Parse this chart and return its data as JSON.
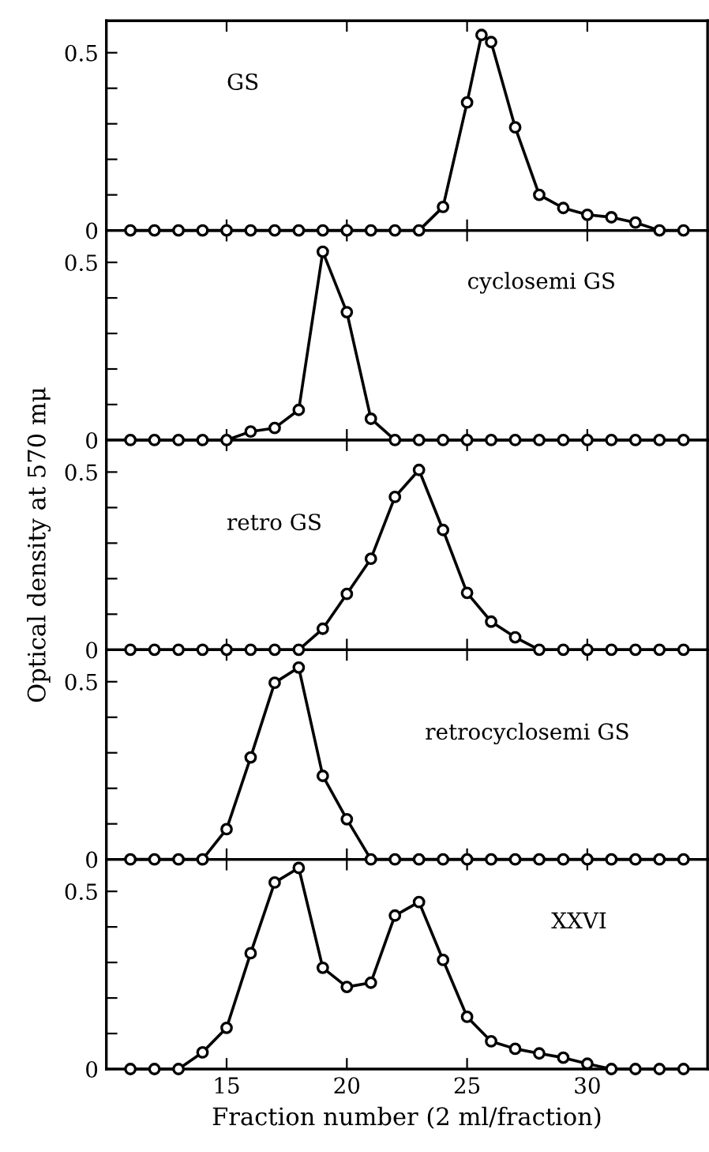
{
  "chart_data": [
    {
      "type": "line",
      "xlim": [
        10,
        35
      ],
      "ylim": [
        0,
        0.59
      ],
      "xticks": [
        {
          "value": 15,
          "label": null
        },
        {
          "value": 20,
          "label": null
        },
        {
          "value": 25,
          "label": null
        },
        {
          "value": 30,
          "label": null
        }
      ],
      "yticks": [
        0,
        {
          "value": 0.1,
          "label": null
        },
        {
          "value": 0.2,
          "label": null
        },
        {
          "value": 0.3,
          "label": null
        },
        {
          "value": 0.4,
          "label": null
        },
        0.5
      ],
      "tick_labels": "y",
      "marker": "circle",
      "grid": false,
      "legend": false,
      "series": [
        {
          "name": "GS",
          "color": "#000000",
          "x": [
            11,
            12,
            13,
            14,
            15,
            16,
            17,
            18,
            19,
            20,
            21,
            22,
            23,
            24,
            25,
            25.6,
            26,
            27,
            28,
            29,
            30,
            31,
            32,
            33,
            34
          ],
          "values": [
            0,
            0,
            0,
            0,
            0,
            0,
            0,
            0,
            0,
            0,
            0,
            0,
            0,
            0.066,
            0.36,
            0.55,
            0.53,
            0.29,
            0.1,
            0.063,
            0.044,
            0.037,
            0.022,
            0,
            0
          ]
        }
      ]
    },
    {
      "type": "line",
      "xlim": [
        10,
        35
      ],
      "ylim": [
        0,
        0.59
      ],
      "xticks": [
        {
          "value": 15,
          "label": null
        },
        {
          "value": 20,
          "label": null
        },
        {
          "value": 25,
          "label": null
        },
        {
          "value": 30,
          "label": null
        }
      ],
      "yticks": [
        0,
        {
          "value": 0.1,
          "label": null
        },
        {
          "value": 0.2,
          "label": null
        },
        {
          "value": 0.3,
          "label": null
        },
        {
          "value": 0.4,
          "label": null
        },
        0.5
      ],
      "tick_labels": "y",
      "marker": "circle",
      "grid": false,
      "legend": false,
      "series": [
        {
          "name": "cyclosemi GS",
          "color": "#000000",
          "x": [
            11,
            12,
            13,
            14,
            15,
            16,
            17,
            18,
            19,
            20,
            21,
            22,
            23,
            24,
            25,
            26,
            27,
            28,
            29,
            30,
            31,
            32,
            33,
            34
          ],
          "values": [
            0,
            0,
            0,
            0,
            0,
            0.024,
            0.034,
            0.085,
            0.53,
            0.36,
            0.06,
            0,
            0,
            0,
            0,
            0,
            0,
            0,
            0,
            0,
            0,
            0,
            0,
            0
          ]
        }
      ]
    },
    {
      "type": "line",
      "xlim": [
        10,
        35
      ],
      "ylim": [
        0,
        0.59
      ],
      "xticks": [
        {
          "value": 15,
          "label": null
        },
        {
          "value": 20,
          "label": null
        },
        {
          "value": 25,
          "label": null
        },
        {
          "value": 30,
          "label": null
        }
      ],
      "yticks": [
        0,
        {
          "value": 0.1,
          "label": null
        },
        {
          "value": 0.2,
          "label": null
        },
        {
          "value": 0.3,
          "label": null
        },
        {
          "value": 0.4,
          "label": null
        },
        0.5
      ],
      "tick_labels": "y",
      "marker": "circle",
      "grid": false,
      "legend": false,
      "ylabel": "Optical density at 570 mμ",
      "series": [
        {
          "name": "retro GS",
          "color": "#000000",
          "x": [
            11,
            12,
            13,
            14,
            15,
            16,
            17,
            18,
            19,
            20,
            21,
            22,
            23,
            24,
            25,
            26,
            27,
            28,
            29,
            30,
            31,
            32,
            33,
            34
          ],
          "values": [
            0,
            0,
            0,
            0,
            0,
            0,
            0,
            0,
            0.059,
            0.157,
            0.256,
            0.43,
            0.506,
            0.337,
            0.16,
            0.079,
            0.035,
            0,
            0,
            0,
            0,
            0,
            0,
            0
          ]
        }
      ]
    },
    {
      "type": "line",
      "xlim": [
        10,
        35
      ],
      "ylim": [
        0,
        0.59
      ],
      "xticks": [
        {
          "value": 15,
          "label": null
        },
        {
          "value": 20,
          "label": null
        },
        {
          "value": 25,
          "label": null
        },
        {
          "value": 30,
          "label": null
        }
      ],
      "yticks": [
        0,
        {
          "value": 0.1,
          "label": null
        },
        {
          "value": 0.2,
          "label": null
        },
        {
          "value": 0.3,
          "label": null
        },
        {
          "value": 0.4,
          "label": null
        },
        0.5
      ],
      "tick_labels": "y",
      "marker": "circle",
      "grid": false,
      "legend": false,
      "series": [
        {
          "name": "retrocyclosemi GS",
          "color": "#000000",
          "x": [
            11,
            12,
            13,
            14,
            15,
            16,
            17,
            18,
            19,
            20,
            21,
            22,
            23,
            24,
            25,
            26,
            27,
            28,
            29,
            30,
            31,
            32,
            33,
            34
          ],
          "values": [
            0,
            0,
            0,
            0,
            0.085,
            0.287,
            0.497,
            0.54,
            0.235,
            0.113,
            0,
            0,
            0,
            0,
            0,
            0,
            0,
            0,
            0,
            0,
            0,
            0,
            0,
            0
          ]
        }
      ]
    },
    {
      "type": "line",
      "xlim": [
        10,
        35
      ],
      "ylim": [
        0,
        0.59
      ],
      "xticks": [
        15,
        20,
        25,
        30
      ],
      "yticks": [
        0,
        {
          "value": 0.1,
          "label": null
        },
        {
          "value": 0.2,
          "label": null
        },
        {
          "value": 0.3,
          "label": null
        },
        {
          "value": 0.4,
          "label": null
        },
        0.5
      ],
      "marker": "circle",
      "grid": false,
      "legend": false,
      "xlabel": "Fraction number (2 ml/fraction)",
      "series": [
        {
          "name": "XXVI",
          "color": "#000000",
          "x": [
            11,
            12,
            13,
            14,
            15,
            16,
            17,
            18,
            19,
            20,
            21,
            22,
            23,
            24,
            25,
            26,
            27,
            28,
            29,
            30,
            31,
            32,
            33,
            34
          ],
          "values": [
            0,
            0,
            0,
            0.047,
            0.116,
            0.326,
            0.525,
            0.566,
            0.285,
            0.231,
            0.243,
            0.432,
            0.47,
            0.307,
            0.147,
            0.078,
            0.057,
            0.044,
            0.032,
            0.015,
            0,
            0,
            0,
            0
          ]
        }
      ]
    }
  ]
}
